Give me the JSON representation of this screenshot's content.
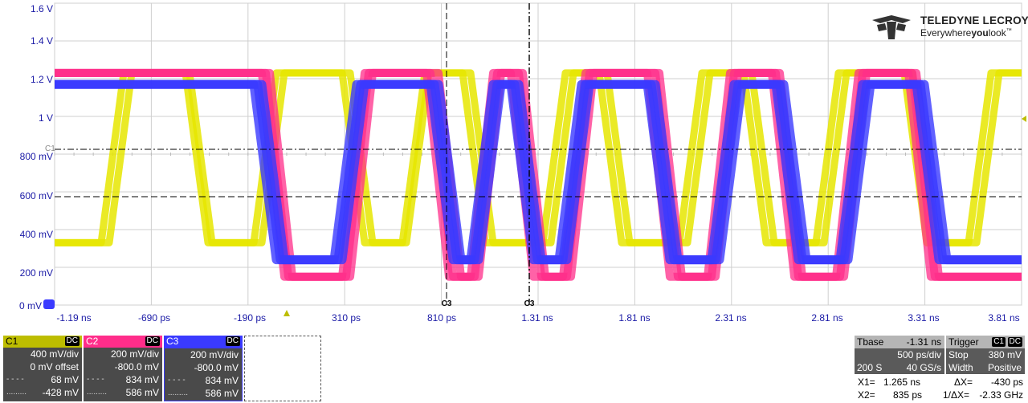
{
  "y_axis": {
    "labels": [
      "1.6 V",
      "1.4 V",
      "1.2 V",
      "1 V",
      "800 mV",
      "600 mV",
      "400 mV",
      "200 mV",
      "0 mV"
    ]
  },
  "x_axis": {
    "labels": [
      "-1.19 ns",
      "-690 ps",
      "-190 ps",
      "310 ps",
      "810 ps",
      "1.31 ns",
      "1.81 ns",
      "2.31 ns",
      "2.81 ns",
      "3.31 ns",
      "3.81 ns"
    ]
  },
  "cursors": {
    "c1_label": "C3",
    "c2_label": "C3",
    "left_marker": "C1"
  },
  "logo": {
    "brand": "TELEDYNE LECROY",
    "tag_pre": "Everywhere",
    "tag_bold": "you",
    "tag_post": "look",
    "tm": "™"
  },
  "colors": {
    "c1": "#e6e600",
    "c2": "#ff2d8a",
    "c3": "#3a3aff",
    "grid": "#c8c8c8",
    "axis_text": "#1a1aa6"
  },
  "channels": [
    {
      "name": "C1",
      "coupling": "DC",
      "vdiv": "400 mV/div",
      "offset": "0 mV offset",
      "cursor1": "68 mV",
      "cursor2": "-428 mV",
      "color": "#bdbd00"
    },
    {
      "name": "C2",
      "coupling": "DC",
      "vdiv": "200 mV/div",
      "offset": "-800.0 mV",
      "cursor1": "834 mV",
      "cursor2": "586 mV",
      "color": "#ff2d8a"
    },
    {
      "name": "C3",
      "coupling": "DC",
      "vdiv": "200 mV/div",
      "offset": "-800.0 mV",
      "cursor1": "834 mV",
      "cursor2": "586 mV",
      "color": "#3a3aff"
    }
  ],
  "timebase": {
    "label": "Tbase",
    "value": "-1.31 ns",
    "per_div": "500 ps/div",
    "samples": "200 S",
    "rate": "40 GS/s"
  },
  "trigger": {
    "label": "Trigger",
    "src": "C1",
    "coupling": "DC",
    "mode": "Stop",
    "level": "380 mV",
    "type": "Width",
    "slope": "Positive"
  },
  "measure": {
    "x1_label": "X1=",
    "x1": "1.265 ns",
    "dx_label": "ΔX=",
    "dx": "-430 ps",
    "x2_label": "X2=",
    "x2": "835 ps",
    "idx_label": "1/ΔX=",
    "idx": "-2.33 GHz"
  }
}
